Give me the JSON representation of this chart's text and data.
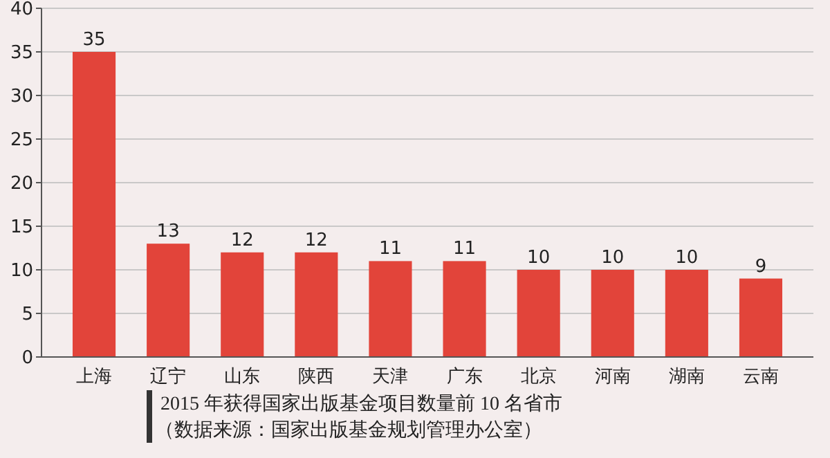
{
  "chart_data": {
    "type": "bar",
    "title": "2015 年获得国家出版基金项目数量前 10 名省市",
    "annotations": [
      "（数据来源：国家出版基金规划管理办公室）"
    ],
    "categories": [
      "上海",
      "辽宁",
      "山东",
      "陕西",
      "天津",
      "广东",
      "北京",
      "河南",
      "湖南",
      "云南"
    ],
    "values": [
      35,
      13,
      12,
      12,
      11,
      11,
      10,
      10,
      10,
      9
    ],
    "color": "#e2443a",
    "ylim": [
      0,
      40
    ],
    "yticks": [
      0,
      5,
      10,
      15,
      20,
      25,
      30,
      35,
      40
    ],
    "grid": "y",
    "data_labels": true
  }
}
